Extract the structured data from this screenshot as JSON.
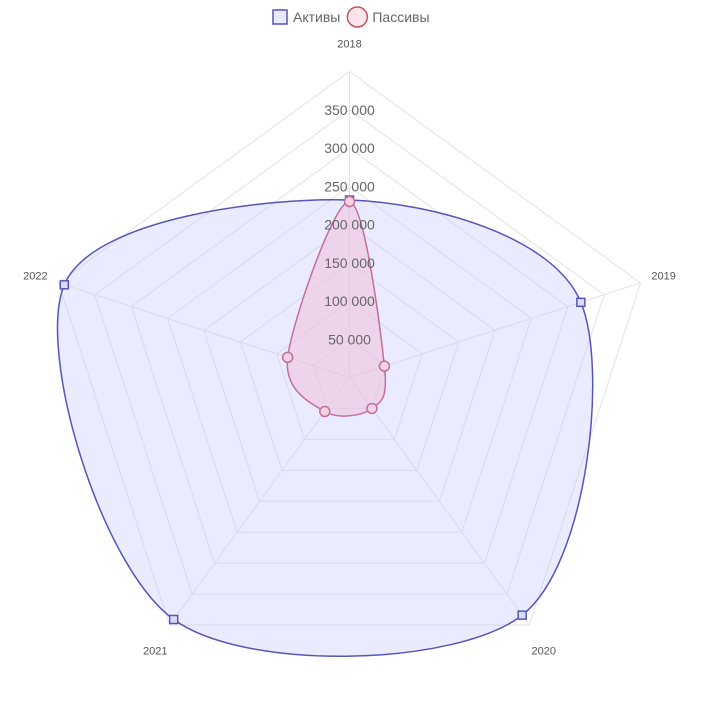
{
  "chart_data": {
    "type": "radar",
    "categories": [
      "2018",
      "2019",
      "2020",
      "2021",
      "2022"
    ],
    "series": [
      {
        "name": "Активы",
        "values": [
          232000,
          318000,
          384000,
          391000,
          392000
        ],
        "color": "#5555bb",
        "fill": "rgba(204,204,255,0.4)",
        "marker": "square"
      },
      {
        "name": "Пассивы",
        "values": [
          230000,
          48000,
          50000,
          55000,
          85000
        ],
        "color": "#c0709a",
        "fill": "rgba(240,190,215,0.5)",
        "marker": "circle"
      }
    ],
    "r_ticks": [
      50000,
      100000,
      150000,
      200000,
      250000,
      300000,
      350000
    ],
    "r_tick_labels": [
      "50 000",
      "100 000",
      "150 000",
      "200 000",
      "250 000",
      "300 000",
      "350 000"
    ],
    "r_range": [
      0,
      400000
    ],
    "grid": true,
    "legend_position": "top"
  }
}
